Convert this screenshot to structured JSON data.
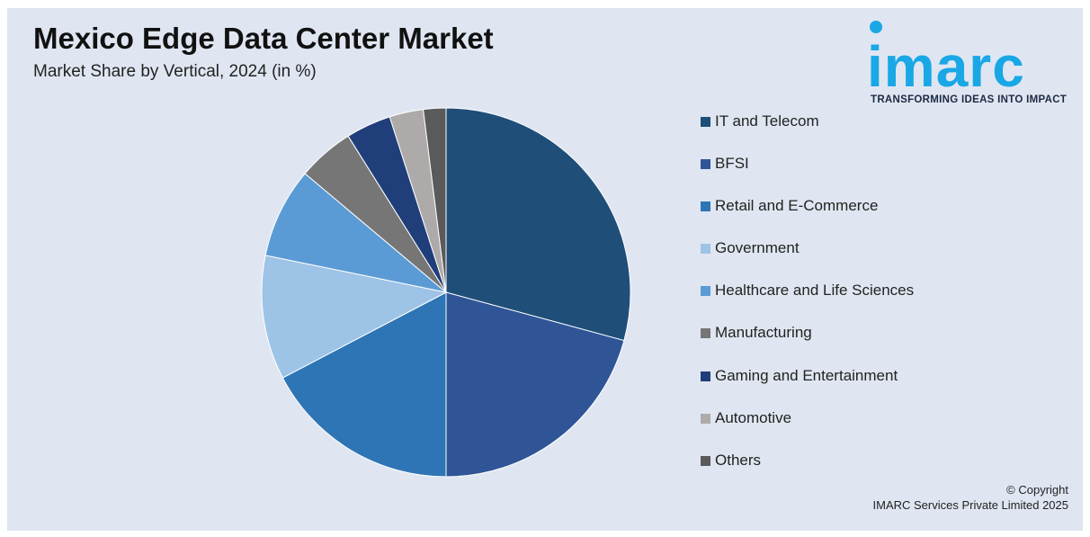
{
  "chart_data": {
    "type": "pie",
    "title": "Mexico Edge Data Center Market",
    "subtitle": "Market Share by Vertical, 2024 (in %)",
    "categories": [
      "IT and Telecom",
      "BFSI",
      "Retail and E-Commerce",
      "Government",
      "Healthcare and Life Sciences",
      "Manufacturing",
      "Gaming and Entertainment",
      "Automotive",
      "Others"
    ],
    "values": [
      29.5,
      21.0,
      17.5,
      11.0,
      8.0,
      5.0,
      4.0,
      3.0,
      2.0
    ],
    "colors": [
      "#1f4e79",
      "#2f5597",
      "#2e75b6",
      "#9dc3e6",
      "#5b9bd5",
      "#767676",
      "#203f7a",
      "#aeaaaa",
      "#5a5a5a"
    ],
    "start_angle": "top",
    "direction": "clockwise",
    "legend_position": "right"
  },
  "brand": {
    "logo_text": "imarc",
    "tagline": "TRANSFORMING IDEAS INTO IMPACT",
    "color": "#1aa7e6"
  },
  "footer": {
    "copyright_line1": "© Copyright",
    "copyright_line2": "IMARC Services Private Limited 2025"
  }
}
